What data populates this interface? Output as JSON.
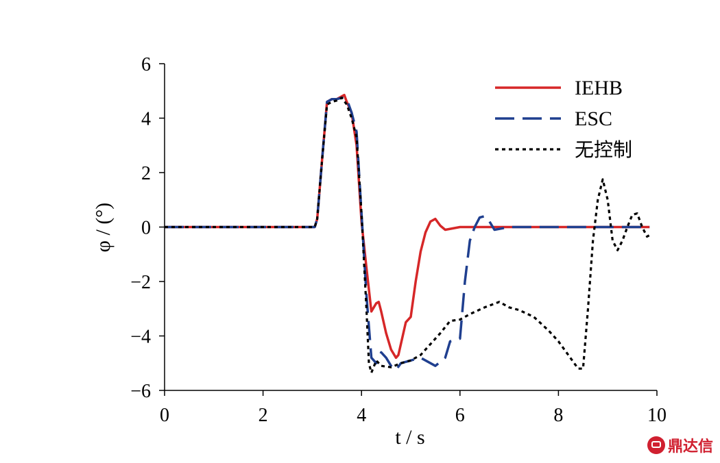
{
  "chart_data": {
    "type": "line",
    "title": "",
    "xlabel": "t / s",
    "ylabel": "φ / (°)",
    "xlim": [
      0,
      10
    ],
    "ylim": [
      -6,
      6
    ],
    "xticks": [
      0,
      2,
      4,
      6,
      8,
      10
    ],
    "yticks": [
      -6,
      -4,
      -2,
      0,
      2,
      4,
      6
    ],
    "ytick_labels": [
      "−6",
      "−4",
      "−2",
      "0",
      "2",
      "4",
      "6"
    ],
    "grid": false,
    "legend": "top-right",
    "series": [
      {
        "name": "IEHB",
        "color": "#d62728",
        "style": "solid",
        "x": [
          0,
          3.05,
          3.1,
          3.2,
          3.3,
          3.4,
          3.5,
          3.6,
          3.65,
          3.7,
          3.8,
          3.9,
          4.0,
          4.1,
          4.2,
          4.3,
          4.35,
          4.4,
          4.5,
          4.6,
          4.7,
          4.75,
          4.8,
          4.9,
          5.0,
          5.1,
          5.2,
          5.3,
          5.4,
          5.5,
          5.6,
          5.7,
          6.0,
          7.0,
          8.0,
          9.0,
          9.85
        ],
        "y": [
          0,
          0,
          0.3,
          2.5,
          4.6,
          4.7,
          4.7,
          4.8,
          4.85,
          4.6,
          4.2,
          3.0,
          0.2,
          -1.5,
          -3.1,
          -2.8,
          -2.75,
          -3.1,
          -3.9,
          -4.5,
          -4.8,
          -4.7,
          -4.3,
          -3.5,
          -3.3,
          -2.0,
          -0.9,
          -0.2,
          0.2,
          0.3,
          0.05,
          -0.1,
          0,
          0,
          0,
          0,
          0
        ]
      },
      {
        "name": "ESC",
        "color": "#1f3f8f",
        "style": "dashed",
        "x": [
          0,
          3.05,
          3.1,
          3.2,
          3.3,
          3.4,
          3.5,
          3.6,
          3.7,
          3.8,
          3.9,
          4.0,
          4.1,
          4.2,
          4.3,
          4.4,
          4.5,
          4.6,
          4.7,
          4.8,
          5.0,
          5.2,
          5.5,
          5.7,
          5.8,
          5.9,
          6.0,
          6.1,
          6.2,
          6.3,
          6.4,
          6.5,
          6.6,
          6.7,
          7.0,
          8.0,
          9.0,
          9.85
        ],
        "y": [
          0,
          0,
          0.3,
          2.5,
          4.6,
          4.7,
          4.7,
          4.75,
          4.7,
          4.2,
          3.5,
          0.5,
          -2.5,
          -4.8,
          -5.0,
          -4.6,
          -4.8,
          -5.1,
          -5.25,
          -5.0,
          -4.9,
          -4.8,
          -5.1,
          -4.8,
          -4.2,
          -4.15,
          -4.1,
          -2.0,
          -0.5,
          0.0,
          0.35,
          0.4,
          0.2,
          -0.1,
          0,
          0,
          0,
          0
        ]
      },
      {
        "name": "无控制",
        "color": "#000000",
        "style": "dotted",
        "x": [
          0,
          3.05,
          3.1,
          3.2,
          3.3,
          3.4,
          3.5,
          3.6,
          3.7,
          3.8,
          3.9,
          4.0,
          4.1,
          4.15,
          4.2,
          4.3,
          4.4,
          4.6,
          4.8,
          5.0,
          5.2,
          5.4,
          5.6,
          5.8,
          6.0,
          6.2,
          6.5,
          6.8,
          7.0,
          7.2,
          7.5,
          7.8,
          8.0,
          8.2,
          8.4,
          8.5,
          8.6,
          8.7,
          8.8,
          8.9,
          9.0,
          9.1,
          9.2,
          9.3,
          9.4,
          9.5,
          9.6,
          9.7,
          9.8,
          9.85
        ],
        "y": [
          0,
          0,
          0.3,
          2.5,
          4.5,
          4.6,
          4.65,
          4.75,
          4.5,
          4.0,
          3.3,
          0.5,
          -3.0,
          -5.0,
          -5.35,
          -4.9,
          -5.1,
          -5.15,
          -5.0,
          -4.9,
          -4.7,
          -4.3,
          -3.9,
          -3.45,
          -3.4,
          -3.2,
          -2.95,
          -2.75,
          -2.95,
          -3.05,
          -3.3,
          -3.8,
          -4.2,
          -4.7,
          -5.2,
          -5.2,
          -3.0,
          -0.5,
          1.0,
          1.75,
          1.0,
          -0.5,
          -0.85,
          -0.5,
          0.0,
          0.45,
          0.5,
          0.0,
          -0.35,
          -0.3
        ]
      }
    ]
  },
  "watermark": {
    "text": "鼎达信"
  }
}
